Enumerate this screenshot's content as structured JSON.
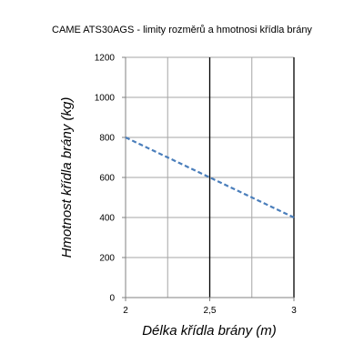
{
  "chart_data": {
    "type": "line",
    "title": "CAME ATS30AGS - limity rozměrů a hmotnosi křídla brány",
    "xlabel": "Délka křídla brány (m)",
    "ylabel": "Hmotnost křídla brány (kg)",
    "xlim": [
      2,
      3
    ],
    "ylim": [
      0,
      1200
    ],
    "x_ticks": [
      2,
      2.5,
      3
    ],
    "x_tick_labels": [
      "2",
      "2,5",
      "3"
    ],
    "y_ticks": [
      0,
      200,
      400,
      600,
      800,
      1000,
      1200
    ],
    "y_tick_labels": [
      "0",
      "200",
      "400",
      "600",
      "800",
      "1000",
      "1200"
    ],
    "grid": true,
    "series": [
      {
        "x": [
          2,
          2.5,
          3
        ],
        "y": [
          800,
          600,
          400
        ],
        "color": "#4a7ebb",
        "style": "dashed"
      }
    ],
    "highlight_vertical_lines_at": [
      2.5,
      3
    ]
  }
}
